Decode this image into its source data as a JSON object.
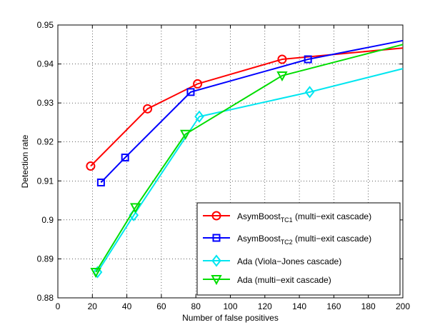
{
  "chart_data": {
    "type": "line",
    "title": "",
    "xlabel": "Number of false positives",
    "ylabel": "Detection rate",
    "xlim": [
      0,
      200
    ],
    "ylim": [
      0.88,
      0.95
    ],
    "x_ticks": [
      0,
      20,
      40,
      60,
      80,
      100,
      120,
      140,
      160,
      180,
      200
    ],
    "x_tick_labels": [
      "0",
      "20",
      "40",
      "60",
      "80",
      "100",
      "120",
      "140",
      "160",
      "180",
      "200"
    ],
    "y_ticks": [
      0.88,
      0.89,
      0.9,
      0.91,
      0.92,
      0.93,
      0.94,
      0.95
    ],
    "y_tick_labels": [
      "0.88",
      "0.89",
      "0.9",
      "0.91",
      "0.92",
      "0.93",
      "0.94",
      "0.95"
    ],
    "grid": true,
    "legend_position": "bottom-right",
    "series": [
      {
        "name": "AsymBoost",
        "sub": "TC1",
        "suffix": " (multi−exit cascade)",
        "color": "#ff0000",
        "marker": "circle",
        "x": [
          19,
          52,
          81,
          130,
          200
        ],
        "y": [
          0.9138,
          0.9285,
          0.9349,
          0.9412,
          0.9441
        ],
        "marker_count": 4
      },
      {
        "name": "AsymBoost",
        "sub": "TC2",
        "suffix": " (multi−exit cascade)",
        "color": "#0000ff",
        "marker": "square",
        "x": [
          25,
          39,
          77,
          145,
          200
        ],
        "y": [
          0.9096,
          0.916,
          0.9328,
          0.9412,
          0.946
        ],
        "marker_count": 4
      },
      {
        "name": "Ada (Viola−Jones cascade)",
        "sub": "",
        "suffix": "",
        "color": "#00e6f0",
        "marker": "diamond",
        "x": [
          23,
          44,
          82,
          146,
          200
        ],
        "y": [
          0.8866,
          0.9012,
          0.9265,
          0.9328,
          0.9388
        ],
        "marker_count": 4
      },
      {
        "name": "Ada (multi−exit cascade)",
        "sub": "",
        "suffix": "",
        "color": "#00dd00",
        "marker": "triangle-down",
        "x": [
          22,
          45,
          74,
          130,
          200
        ],
        "y": [
          0.8866,
          0.9032,
          0.922,
          0.937,
          0.945
        ],
        "marker_count": 4
      }
    ]
  }
}
